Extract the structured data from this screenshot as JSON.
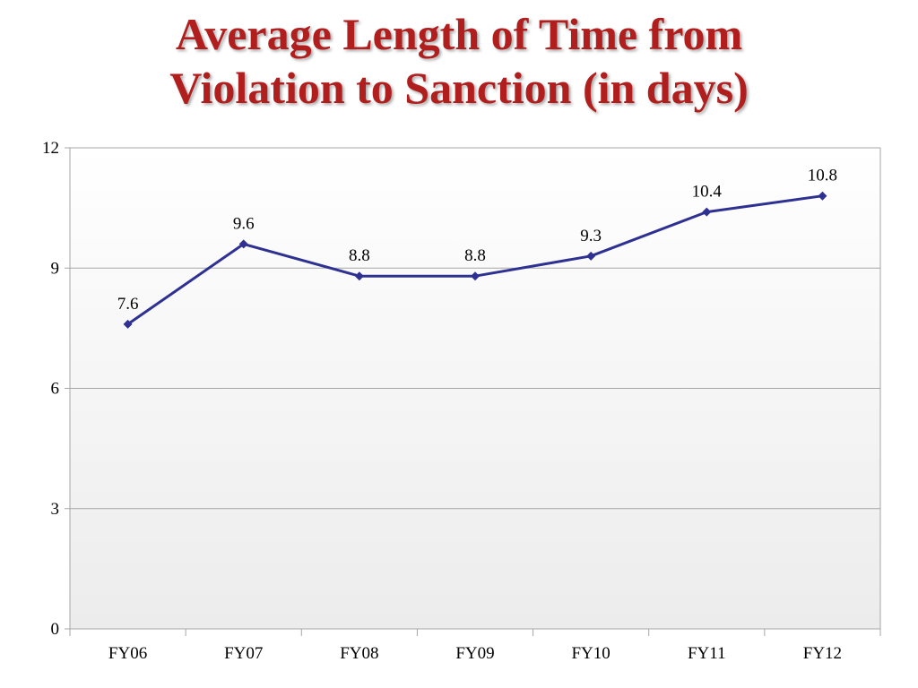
{
  "title_lines": [
    "Average Length of Time from",
    "Violation to Sanction (in days)"
  ],
  "chart_data": {
    "type": "line",
    "title": "Average Length of Time from Violation to Sanction (in days)",
    "categories": [
      "FY06",
      "FY07",
      "FY08",
      "FY09",
      "FY10",
      "FY11",
      "FY12"
    ],
    "series": [
      {
        "values": [
          7.6,
          9.6,
          8.8,
          8.8,
          9.3,
          10.4,
          10.8
        ],
        "data_labels": [
          "7.6",
          "9.6",
          "8.8",
          "8.8",
          "9.3",
          "10.4",
          "10.8"
        ]
      }
    ],
    "ylim": [
      0,
      12
    ],
    "yticks": [
      0,
      3,
      6,
      9,
      12
    ],
    "ytick_labels": [
      "0",
      "3",
      "6",
      "9",
      "12"
    ],
    "xlabel": "",
    "ylabel": "",
    "grid": true,
    "legend": "none",
    "marker": "diamond",
    "colors": {
      "line": "#2e3192",
      "title": "#b01e1e",
      "grid": "#a6a6a6",
      "plot_bg_top": "#ffffff",
      "plot_bg_bottom": "#ececec"
    }
  }
}
